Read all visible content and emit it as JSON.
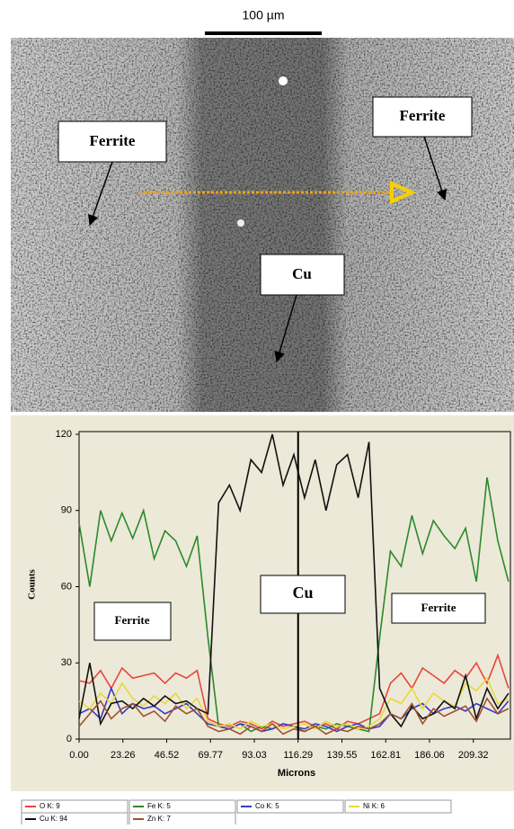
{
  "image": {
    "scale_bar": "100 µm",
    "labels": [
      "Ferrite",
      "Ferrite",
      "Cu"
    ]
  },
  "chart_data": {
    "type": "line",
    "x_label": "Microns",
    "y_label": "Counts",
    "annotations": [
      "Ferrite",
      "Cu",
      "Ferrite"
    ],
    "x": [
      0,
      5.7,
      11.4,
      17.1,
      22.8,
      28.5,
      34.2,
      39.9,
      45.6,
      51.3,
      57,
      62.7,
      68.4,
      74.1,
      79.8,
      85.5,
      91.2,
      96.9,
      102.6,
      108.3,
      114,
      119.7,
      125.4,
      131.1,
      136.8,
      142.5,
      148.2,
      153.9,
      159.6,
      165.3,
      171,
      176.7,
      182.4,
      188.1,
      193.8,
      199.5,
      205.2,
      210.9,
      216.6,
      222.3,
      228
    ],
    "series": [
      {
        "name": "O K: 9",
        "color": "#e8453c",
        "values": [
          23,
          22,
          27,
          20,
          28,
          24,
          25,
          26,
          22,
          26,
          24,
          27,
          8,
          6,
          5,
          7,
          6,
          4,
          7,
          5,
          6,
          7,
          5,
          6,
          4,
          7,
          6,
          8,
          10,
          22,
          26,
          20,
          28,
          25,
          22,
          27,
          24,
          30,
          22,
          33,
          20
        ]
      },
      {
        "name": "Fe K: 5",
        "color": "#2a8a2a",
        "values": [
          85,
          60,
          90,
          78,
          89,
          79,
          90,
          71,
          82,
          78,
          68,
          80,
          40,
          5,
          4,
          6,
          3,
          5,
          4,
          6,
          5,
          3,
          5,
          4,
          6,
          5,
          4,
          3,
          40,
          74,
          68,
          88,
          73,
          86,
          80,
          75,
          83,
          62,
          103,
          78,
          62
        ]
      },
      {
        "name": "Co K: 5",
        "color": "#3a3ac8",
        "values": [
          10,
          12,
          8,
          20,
          10,
          14,
          12,
          13,
          10,
          12,
          14,
          10,
          6,
          5,
          4,
          6,
          5,
          3,
          4,
          6,
          5,
          4,
          6,
          5,
          3,
          5,
          6,
          4,
          5,
          10,
          8,
          12,
          14,
          10,
          12,
          13,
          11,
          14,
          12,
          10,
          15
        ]
      },
      {
        "name": "Ni K: 6",
        "color": "#e8d83a",
        "values": [
          15,
          12,
          18,
          14,
          22,
          16,
          13,
          17,
          14,
          18,
          12,
          16,
          7,
          5,
          6,
          4,
          7,
          5,
          6,
          4,
          5,
          6,
          4,
          7,
          5,
          6,
          4,
          5,
          8,
          16,
          14,
          20,
          12,
          18,
          15,
          13,
          22,
          19,
          24,
          14,
          16
        ]
      },
      {
        "name": "Cu K: 94",
        "color": "#111111",
        "values": [
          8,
          30,
          6,
          14,
          15,
          12,
          16,
          13,
          17,
          14,
          15,
          12,
          10,
          93,
          100,
          90,
          110,
          105,
          120,
          100,
          112,
          95,
          110,
          90,
          108,
          112,
          95,
          117,
          20,
          10,
          5,
          13,
          8,
          10,
          15,
          12,
          25,
          8,
          20,
          12,
          18
        ]
      },
      {
        "name": "Zn K: 7",
        "color": "#a0522d",
        "values": [
          5,
          10,
          15,
          8,
          12,
          14,
          9,
          11,
          7,
          13,
          10,
          12,
          5,
          3,
          4,
          2,
          5,
          3,
          6,
          2,
          4,
          3,
          5,
          2,
          4,
          3,
          5,
          4,
          6,
          10,
          8,
          14,
          6,
          12,
          9,
          11,
          13,
          7,
          16,
          10,
          12
        ]
      }
    ],
    "xlim": [
      0,
      229
    ],
    "ylim": [
      0,
      120
    ],
    "xticks": [
      {
        "value": 0,
        "label": "0.00"
      },
      23.26,
      46.52,
      69.77,
      93.03,
      116.29,
      139.55,
      162.81,
      186.06,
      209.32
    ],
    "yticks": [
      0,
      30,
      60,
      90,
      120
    ]
  }
}
